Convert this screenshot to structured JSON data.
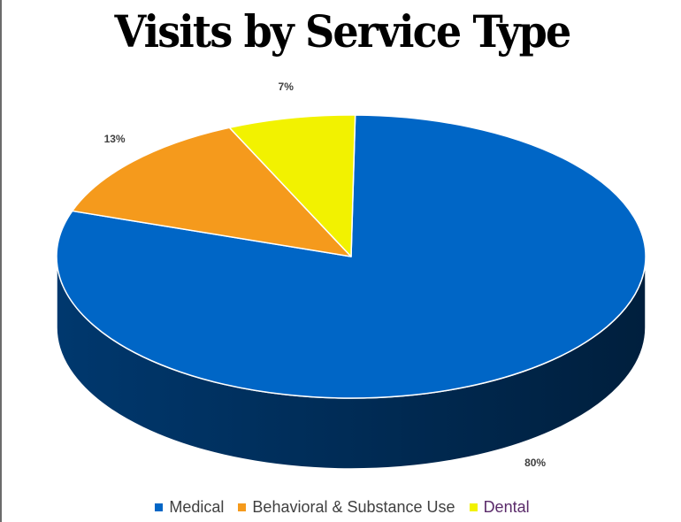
{
  "chart_data": {
    "type": "pie",
    "title": "Visits by Service Type",
    "categories": [
      "Medical",
      "Behavioral & Substance Use",
      "Dental"
    ],
    "values": [
      80,
      13,
      7
    ],
    "data_labels": [
      "80%",
      "13%",
      "7%"
    ],
    "colors": [
      "#0066c6",
      "#f59a1c",
      "#f2f200"
    ],
    "legend_position": "bottom",
    "three_d": true
  },
  "legend": {
    "items": [
      {
        "label": "Medical",
        "color": "#0066c6"
      },
      {
        "label": "Behavioral & Substance Use",
        "color": "#f59a1c"
      },
      {
        "label": "Dental",
        "color": "#f2f200"
      }
    ]
  }
}
